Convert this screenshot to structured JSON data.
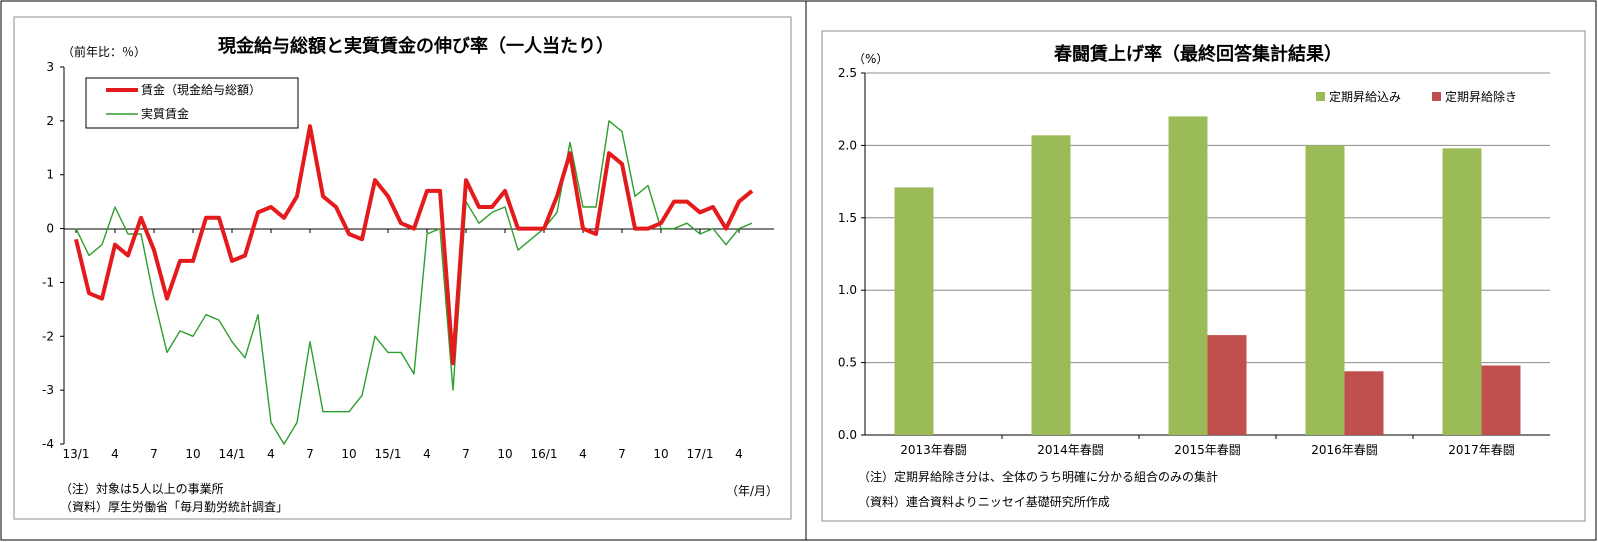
{
  "chart_data": [
    {
      "type": "line",
      "title": "現金給与総額と実質賃金の伸び率（一人当たり）",
      "ylabel": "（前年比：％）",
      "xlabel": "（年/月）",
      "ylim": [
        -4,
        3
      ],
      "yticks": [
        "3",
        "2",
        "1",
        "0",
        "-1",
        "-2",
        "-3",
        "-4"
      ],
      "xtick_labels": [
        {
          "i": 0,
          "label": "13/1"
        },
        {
          "i": 3,
          "label": "4"
        },
        {
          "i": 6,
          "label": "7"
        },
        {
          "i": 9,
          "label": "10"
        },
        {
          "i": 12,
          "label": "14/1"
        },
        {
          "i": 15,
          "label": "4"
        },
        {
          "i": 18,
          "label": "7"
        },
        {
          "i": 21,
          "label": "10"
        },
        {
          "i": 24,
          "label": "15/1"
        },
        {
          "i": 27,
          "label": "4"
        },
        {
          "i": 30,
          "label": "7"
        },
        {
          "i": 33,
          "label": "10"
        },
        {
          "i": 36,
          "label": "16/1"
        },
        {
          "i": 39,
          "label": "4"
        },
        {
          "i": 42,
          "label": "7"
        },
        {
          "i": 45,
          "label": "10"
        },
        {
          "i": 48,
          "label": "17/1"
        },
        {
          "i": 51,
          "label": "4"
        }
      ],
      "series": [
        {
          "name": "賃金（現金給与総額）",
          "color": "#e41a1c",
          "values": [
            -0.2,
            -1.2,
            -1.3,
            -0.3,
            -0.5,
            0.2,
            -0.4,
            -1.3,
            -0.6,
            -0.6,
            0.2,
            0.2,
            -0.6,
            -0.5,
            0.3,
            0.4,
            0.2,
            0.6,
            1.9,
            0.6,
            0.4,
            -0.1,
            -0.2,
            0.9,
            0.6,
            0.1,
            0.0,
            0.7,
            0.7,
            -2.5,
            0.9,
            0.4,
            0.4,
            0.7,
            0.0,
            0.0,
            0.0,
            0.6,
            1.4,
            0.0,
            -0.1,
            1.4,
            1.2,
            0.0,
            0.0,
            0.1,
            0.5,
            0.5,
            0.3,
            0.4,
            0.0,
            0.5,
            0.7
          ]
        },
        {
          "name": "実質賃金",
          "color": "#2e9e2e",
          "values": [
            0.0,
            -0.5,
            -0.3,
            0.4,
            -0.1,
            -0.1,
            -1.3,
            -2.3,
            -1.9,
            -2.0,
            -1.6,
            -1.7,
            -2.1,
            -2.4,
            -1.6,
            -3.6,
            -4.0,
            -3.6,
            -2.1,
            -3.4,
            -3.4,
            -3.4,
            -3.1,
            -2.0,
            -2.3,
            -2.3,
            -2.7,
            -0.1,
            0.0,
            -3.0,
            0.5,
            0.1,
            0.3,
            0.4,
            -0.4,
            -0.2,
            0.0,
            0.3,
            1.6,
            0.4,
            0.4,
            2.0,
            1.8,
            0.6,
            0.8,
            0.0,
            0.0,
            0.1,
            -0.1,
            0.0,
            -0.3,
            0.0,
            0.1
          ]
        }
      ],
      "notes": [
        "（注）対象は5人以上の事業所",
        "（資料）厚生労働省「毎月勤労統計調査」"
      ]
    },
    {
      "type": "bar",
      "title": "春闘賃上げ率（最終回答集計結果）",
      "ylabel": "（%）",
      "ylim": [
        0,
        2.5
      ],
      "yticks": [
        "2.5",
        "2.0",
        "1.5",
        "1.0",
        "0.5",
        "0.0"
      ],
      "categories": [
        "2013年春闘",
        "2014年春闘",
        "2015年春闘",
        "2016年春闘",
        "2017年春闘"
      ],
      "series": [
        {
          "name": "定期昇給込み",
          "color": "#9bbb59",
          "values": [
            1.71,
            2.07,
            2.2,
            2.0,
            1.98
          ]
        },
        {
          "name": "定期昇給除き",
          "color": "#c0504d",
          "values": [
            null,
            null,
            0.69,
            0.44,
            0.48
          ]
        }
      ],
      "notes": [
        "（注）定期昇給除き分は、全体のうち明確に分かる組合のみの集計",
        "（資料）連合資料よりニッセイ基礎研究所作成"
      ]
    }
  ]
}
